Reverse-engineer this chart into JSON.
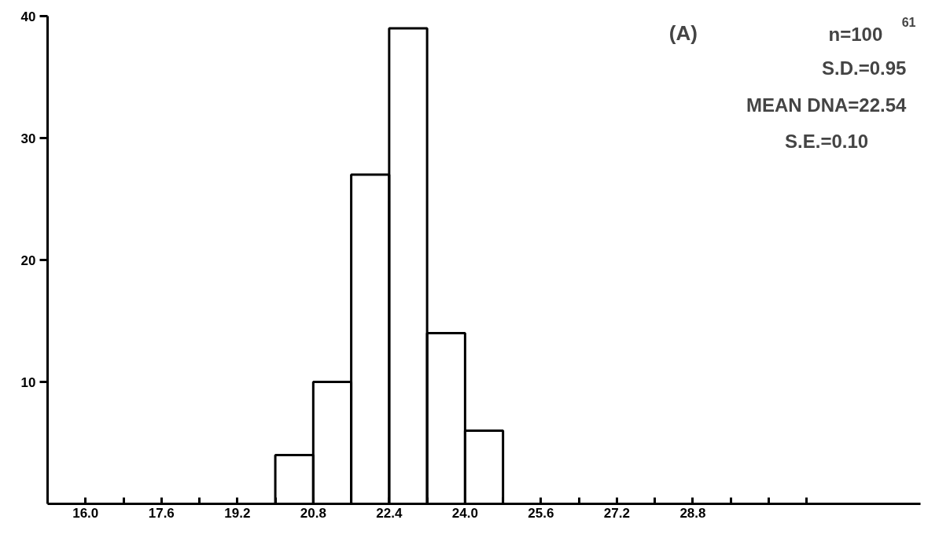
{
  "chart_data": {
    "type": "histogram",
    "bins": [
      20.0,
      20.8,
      21.6,
      22.4,
      23.2,
      24.0,
      24.8
    ],
    "values": [
      4,
      10,
      27,
      39,
      14,
      6
    ],
    "color": "#000000",
    "xlim": [
      15.2,
      33.6
    ],
    "ylim": [
      0,
      40
    ],
    "xticks": [
      {
        "value": 16.0,
        "label": "16.0"
      },
      {
        "value": 16.8,
        "label": null
      },
      {
        "value": 17.6,
        "label": "17.6"
      },
      {
        "value": 18.4,
        "label": null
      },
      {
        "value": 19.2,
        "label": "19.2"
      },
      {
        "value": 20.0,
        "label": null
      },
      {
        "value": 20.8,
        "label": "20.8"
      },
      {
        "value": 21.6,
        "label": null
      },
      {
        "value": 22.4,
        "label": "22.4"
      },
      {
        "value": 23.2,
        "label": null
      },
      {
        "value": 24.0,
        "label": "24.0"
      },
      {
        "value": 24.8,
        "label": null
      },
      {
        "value": 25.6,
        "label": "25.6"
      },
      {
        "value": 26.4,
        "label": null
      },
      {
        "value": 27.2,
        "label": "27.2"
      },
      {
        "value": 28.0,
        "label": null
      },
      {
        "value": 28.8,
        "label": "28.8"
      },
      {
        "value": 29.6,
        "label": null
      },
      {
        "value": 30.4,
        "label": null
      },
      {
        "value": 31.2,
        "label": null
      }
    ],
    "yticks": [
      10,
      20,
      30,
      40
    ],
    "grid": false,
    "annotations": [
      "(A)",
      "n=100",
      "S.D.=0.95",
      "MEAN DNA=22.54",
      "S.E.=0.10",
      "61"
    ]
  }
}
